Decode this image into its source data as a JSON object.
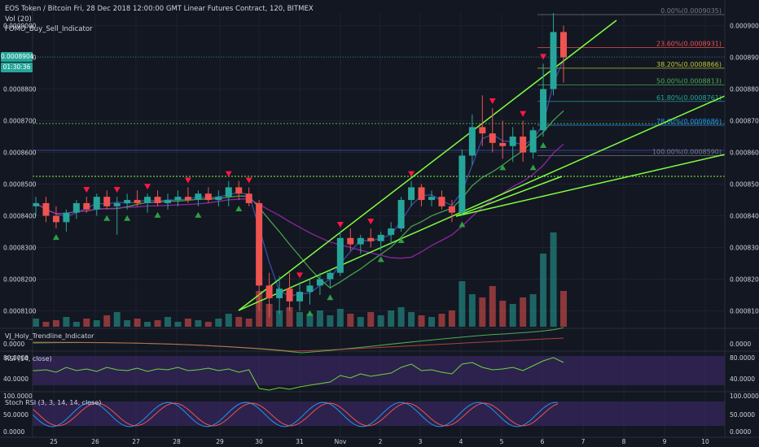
{
  "header": {
    "title": "EOS Token / Bitcoin Fri, 28 Dec 2018 12:00:00 GMT Linear Futures Contract, 120, BITMEX",
    "indicator1": "Vol (20)",
    "indicator2": "FOMO_Buy_Sell_Indicator"
  },
  "badges": {
    "price": "0.0008904",
    "countdown": "01:30:36"
  },
  "panes": {
    "trend_label": "VJ_Holy_Trendline_Indicator",
    "rsi_label": "RSI (14, close)",
    "stoch_label": "Stoch RSI (3, 3, 14, 14, close)"
  },
  "colors": {
    "background": "#131722",
    "up": "#26a69a",
    "down": "#ef5350",
    "trendline": "#7fff3f",
    "ma_purple": "#9c27b0",
    "ma_blue": "#3f51b5",
    "ma_green": "#4caf50",
    "rsi_fill": "#3d2a6b"
  },
  "chart_data": {
    "type": "candlestick",
    "x_ticks": [
      "25",
      "26",
      "27",
      "28",
      "29",
      "30",
      "31",
      "Nov",
      "2",
      "3",
      "4",
      "5",
      "6",
      "7",
      "8",
      "9",
      "10"
    ],
    "y_ticks": [
      "0.0009000",
      "0.0008900",
      "0.0008800",
      "0.0008700",
      "0.0008600",
      "0.0008500",
      "0.0008400",
      "0.0008300",
      "0.0008200",
      "0.0008100"
    ],
    "ylim": [
      0.000805,
      0.000904
    ],
    "fibonacci": [
      {
        "label": "0.00%(0.0009035)",
        "value": 0.0009035,
        "color": "#787b86"
      },
      {
        "label": "23.60%(0.0008931)",
        "value": 0.0008931,
        "color": "#ef5350"
      },
      {
        "label": "38.20%(0.0008866)",
        "value": 0.0008866,
        "color": "#c0ca33"
      },
      {
        "label": "50.00%(0.0008813)",
        "value": 0.0008813,
        "color": "#4caf50"
      },
      {
        "label": "61.80%(0.0008761)",
        "value": 0.0008761,
        "color": "#26a69a"
      },
      {
        "label": "78.60%(0.0008686)",
        "value": 0.0008686,
        "color": "#2196f3"
      },
      {
        "label": "100.00%(0.0008590)",
        "value": 0.000859,
        "color": "#787b86"
      }
    ],
    "candles": [
      [
        0.000843,
        0.000846,
        0.00084,
        0.000844
      ],
      [
        0.000844,
        0.000846,
        0.000838,
        0.00084
      ],
      [
        0.00084,
        0.000843,
        0.000836,
        0.000838
      ],
      [
        0.000838,
        0.000842,
        0.000835,
        0.000841
      ],
      [
        0.000841,
        0.000845,
        0.000839,
        0.000844
      ],
      [
        0.000844,
        0.000846,
        0.000841,
        0.000842
      ],
      [
        0.000842,
        0.000847,
        0.00084,
        0.000846
      ],
      [
        0.000846,
        0.000848,
        0.000842,
        0.000843
      ],
      [
        0.000843,
        0.000846,
        0.000834,
        0.000844
      ],
      [
        0.000844,
        0.000847,
        0.000842,
        0.000845
      ],
      [
        0.000845,
        0.000848,
        0.000843,
        0.000844
      ],
      [
        0.000844,
        0.000847,
        0.000841,
        0.000846
      ],
      [
        0.000846,
        0.000848,
        0.000843,
        0.000844
      ],
      [
        0.000844,
        0.000847,
        0.000842,
        0.000845
      ],
      [
        0.000845,
        0.000848,
        0.000843,
        0.000846
      ],
      [
        0.000846,
        0.000849,
        0.000844,
        0.000845
      ],
      [
        0.000845,
        0.000848,
        0.000843,
        0.000847
      ],
      [
        0.000847,
        0.000849,
        0.000844,
        0.000845
      ],
      [
        0.000845,
        0.000848,
        0.000843,
        0.000846
      ],
      [
        0.000846,
        0.000851,
        0.000843,
        0.000849
      ],
      [
        0.000849,
        0.000851,
        0.000845,
        0.000847
      ],
      [
        0.000847,
        0.000849,
        0.000843,
        0.000844
      ],
      [
        0.000844,
        0.000845,
        0.00081,
        0.000818
      ],
      [
        0.000818,
        0.000822,
        0.000808,
        0.000814
      ],
      [
        0.000814,
        0.000821,
        0.000809,
        0.000817
      ],
      [
        0.000817,
        0.000822,
        0.00081,
        0.000813
      ],
      [
        0.000813,
        0.000819,
        0.00081,
        0.000816
      ],
      [
        0.000816,
        0.00082,
        0.000812,
        0.000818
      ],
      [
        0.000818,
        0.000822,
        0.000815,
        0.00082
      ],
      [
        0.00082,
        0.000823,
        0.000817,
        0.000822
      ],
      [
        0.000822,
        0.000835,
        0.000821,
        0.000833
      ],
      [
        0.000833,
        0.000836,
        0.000829,
        0.000831
      ],
      [
        0.000831,
        0.000834,
        0.000828,
        0.000833
      ],
      [
        0.000833,
        0.000836,
        0.00083,
        0.000832
      ],
      [
        0.000832,
        0.000835,
        0.000829,
        0.000834
      ],
      [
        0.000834,
        0.000838,
        0.000831,
        0.000836
      ],
      [
        0.000836,
        0.000846,
        0.000835,
        0.000845
      ],
      [
        0.000845,
        0.000851,
        0.000843,
        0.000849
      ],
      [
        0.000849,
        0.00085,
        0.000843,
        0.000845
      ],
      [
        0.000845,
        0.000848,
        0.000843,
        0.000846
      ],
      [
        0.000846,
        0.000848,
        0.000842,
        0.000843
      ],
      [
        0.000843,
        0.000845,
        0.000838,
        0.000841
      ],
      [
        0.000841,
        0.000861,
        0.00084,
        0.000859
      ],
      [
        0.000859,
        0.000872,
        0.000856,
        0.000868
      ],
      [
        0.000868,
        0.000878,
        0.000862,
        0.000866
      ],
      [
        0.000866,
        0.000874,
        0.00086,
        0.000863
      ],
      [
        0.000863,
        0.00087,
        0.000858,
        0.000862
      ],
      [
        0.000862,
        0.000868,
        0.000857,
        0.000865
      ],
      [
        0.000865,
        0.00087,
        0.000857,
        0.00086
      ],
      [
        0.00086,
        0.000868,
        0.000858,
        0.000867
      ],
      [
        0.000867,
        0.000888,
        0.000865,
        0.00088
      ],
      [
        0.00088,
        0.000904,
        0.000878,
        0.000898
      ],
      [
        0.000898,
        0.0009,
        0.000882,
        0.00089
      ]
    ],
    "volumes": [
      5,
      3,
      4,
      6,
      3,
      5,
      4,
      7,
      9,
      4,
      5,
      3,
      4,
      6,
      3,
      5,
      4,
      3,
      5,
      8,
      6,
      5,
      22,
      14,
      10,
      12,
      9,
      8,
      10,
      7,
      11,
      8,
      6,
      9,
      7,
      10,
      12,
      9,
      7,
      6,
      8,
      10,
      28,
      20,
      18,
      25,
      16,
      14,
      18,
      20,
      45,
      58,
      22
    ],
    "sell_signal_index": [
      5,
      8,
      11,
      15,
      19,
      21,
      26,
      30,
      33,
      37,
      45,
      48,
      50
    ],
    "buy_signal_index": [
      2,
      7,
      9,
      12,
      16,
      20,
      27,
      29,
      34,
      36,
      42,
      46,
      49,
      50
    ],
    "trend_axis": [
      "0.0000"
    ],
    "rsi_axis": [
      "80.0000",
      "40.0000"
    ],
    "stoch_axis": [
      "100.0000",
      "50.0000",
      "0.0000"
    ]
  }
}
